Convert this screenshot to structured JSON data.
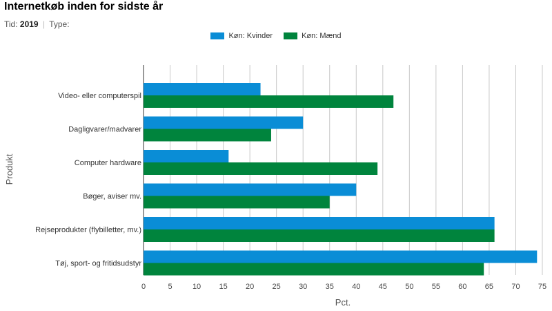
{
  "header": {
    "title": "Internetkøb inden for sidste år",
    "tid_label": "Tid:",
    "tid_value": "2019",
    "separator": "|",
    "type_label": "Type:"
  },
  "legend": {
    "items": [
      {
        "label": "Køn: Kvinder",
        "color": "#0a8dd6"
      },
      {
        "label": "Køn: Mænd",
        "color": "#00843d"
      }
    ]
  },
  "chart_data": {
    "type": "bar",
    "orientation": "horizontal",
    "categories": [
      "Video- eller computerspil",
      "Dagligvarer/madvarer",
      "Computer hardware",
      "Bøger, aviser mv.",
      "Rejseprodukter (flybilletter, mv.)",
      "Tøj, sport- og fritidsudstyr"
    ],
    "series": [
      {
        "name": "Køn: Kvinder",
        "color": "#0a8dd6",
        "values": [
          22,
          30,
          16,
          40,
          66,
          74
        ]
      },
      {
        "name": "Køn: Mænd",
        "color": "#00843d",
        "values": [
          47,
          24,
          44,
          35,
          66,
          64
        ]
      }
    ],
    "xlabel": "Pct.",
    "ylabel": "Produkt",
    "xlim": [
      0,
      75
    ],
    "xticks": [
      0,
      5,
      10,
      15,
      20,
      25,
      30,
      35,
      40,
      45,
      50,
      55,
      60,
      65,
      70,
      75
    ],
    "grid": true,
    "legend_position": "top"
  }
}
